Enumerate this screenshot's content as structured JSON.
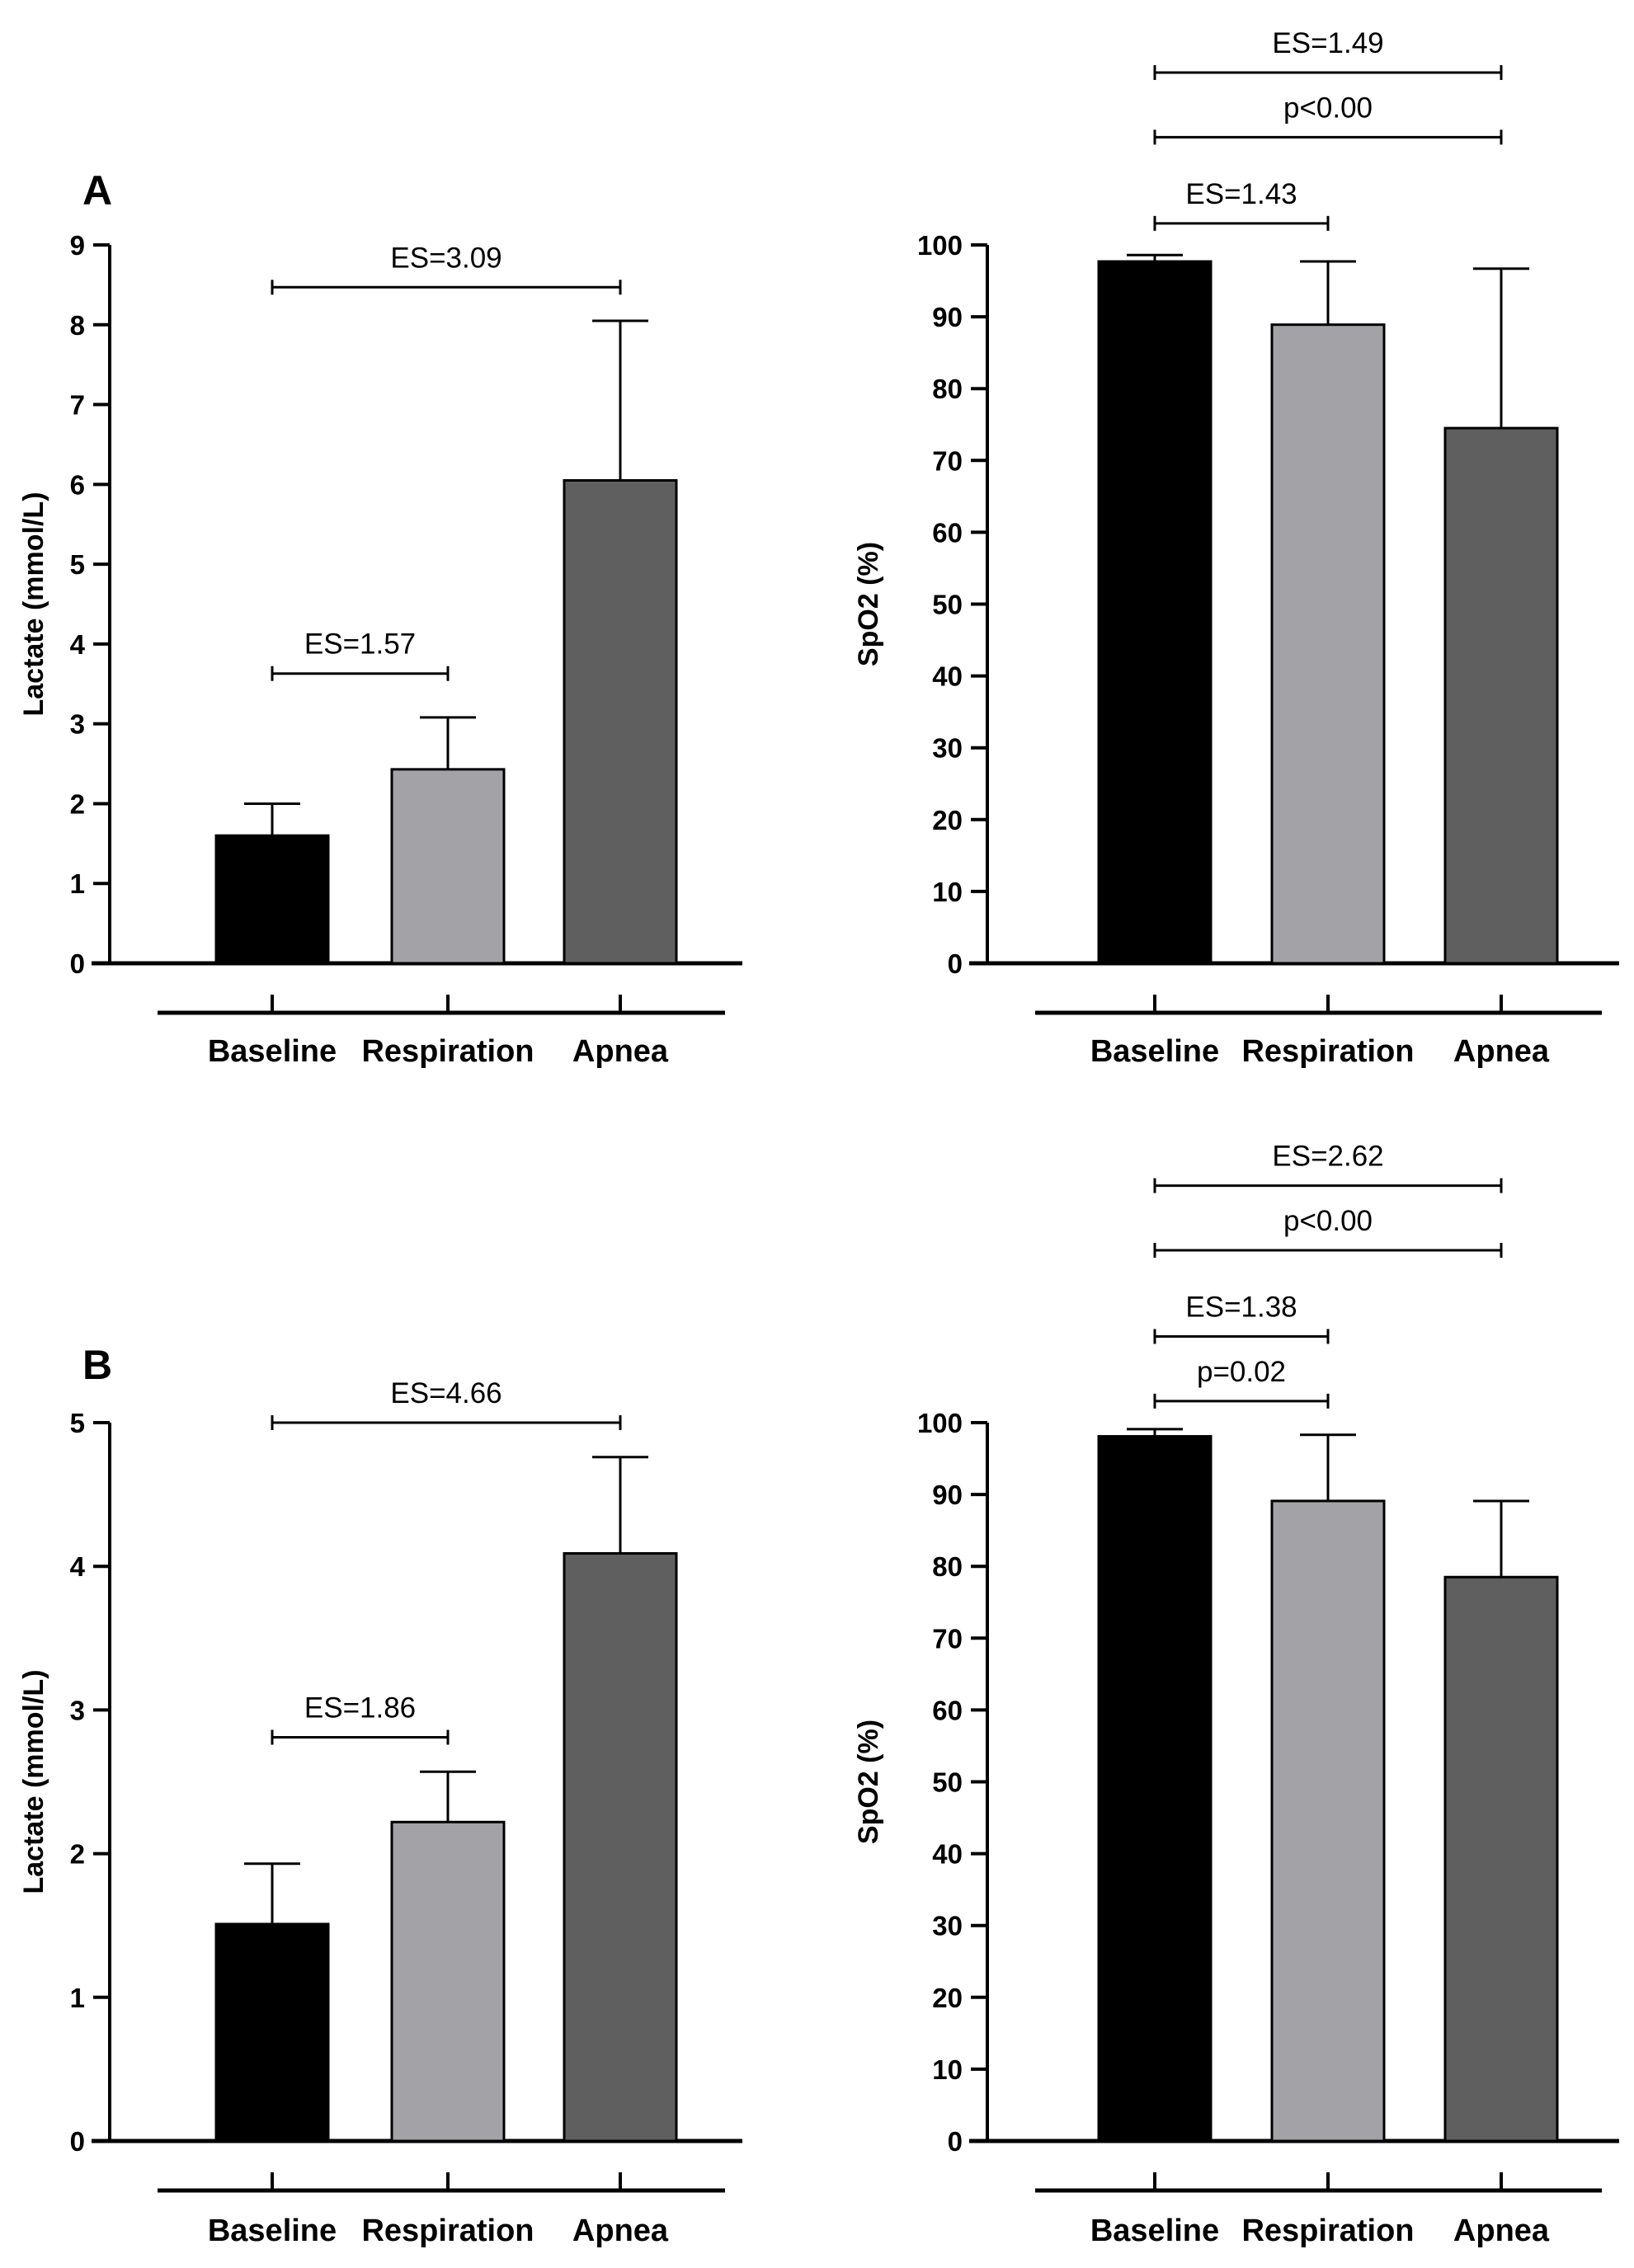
{
  "chart_data": [
    {
      "panel": "A",
      "type": "bar",
      "ylabel": "Lactate (mmol/L)",
      "categories": [
        "Baseline",
        "Respiration",
        "Apnea"
      ],
      "values": [
        1.6,
        2.43,
        6.05
      ],
      "errors": [
        0.4,
        0.65,
        2.0
      ],
      "ylim": [
        0,
        9
      ],
      "yticks": [
        "0",
        "1",
        "2",
        "3",
        "4",
        "5",
        "6",
        "7",
        "8",
        "9"
      ],
      "colors": [
        "#000000",
        "#a3a3a7",
        "#5f5f5f"
      ],
      "annotations": [
        {
          "label": "ES=1.57",
          "from": 0,
          "to": 1,
          "level": 3.63
        },
        {
          "label": "ES=3.09",
          "from": 0,
          "to": 2,
          "level": 8.47
        }
      ]
    },
    {
      "type": "bar",
      "ylabel": "SpO2 (%)",
      "categories": [
        "Baseline",
        "Respiration",
        "Apnea"
      ],
      "values": [
        97.7,
        88.9,
        74.5
      ],
      "errors": [
        0.9,
        8.8,
        22.2
      ],
      "ylim": [
        0,
        100
      ],
      "yticks": [
        "0",
        "10",
        "20",
        "30",
        "40",
        "50",
        "60",
        "70",
        "80",
        "90",
        "100"
      ],
      "colors": [
        "#000000",
        "#a3a3a7",
        "#5f5f5f"
      ],
      "annotations": [
        {
          "label": "ES=1.43",
          "from": 0,
          "to": 1,
          "level": 103
        },
        {
          "label": "p<0.00",
          "from": 0,
          "to": 2,
          "level": 115
        },
        {
          "label": "ES=1.49",
          "from": 0,
          "to": 2,
          "level": 124
        }
      ]
    },
    {
      "panel": "B",
      "type": "bar",
      "ylabel": "Lactate (mmol/L)",
      "categories": [
        "Baseline",
        "Respiration",
        "Apnea"
      ],
      "values": [
        1.51,
        2.22,
        4.09
      ],
      "errors": [
        0.42,
        0.35,
        0.67
      ],
      "ylim": [
        0,
        5
      ],
      "yticks": [
        "0",
        "1",
        "2",
        "3",
        "4",
        "5"
      ],
      "colors": [
        "#000000",
        "#a3a3a7",
        "#5f5f5f"
      ],
      "annotations": [
        {
          "label": "ES=1.86",
          "from": 0,
          "to": 1,
          "level": 2.81
        },
        {
          "label": "ES=4.66",
          "from": 0,
          "to": 2,
          "level": 5.0
        }
      ]
    },
    {
      "type": "bar",
      "ylabel": "SpO2 (%)",
      "categories": [
        "Baseline",
        "Respiration",
        "Apnea"
      ],
      "values": [
        98.1,
        89.1,
        78.5
      ],
      "errors": [
        1.0,
        9.2,
        10.6
      ],
      "ylim": [
        0,
        100
      ],
      "yticks": [
        "0",
        "10",
        "20",
        "30",
        "40",
        "50",
        "60",
        "70",
        "80",
        "90",
        "100"
      ],
      "colors": [
        "#000000",
        "#a3a3a7",
        "#5f5f5f"
      ],
      "annotations": [
        {
          "label": "p=0.02",
          "from": 0,
          "to": 1,
          "level": 103
        },
        {
          "label": "ES=1.38",
          "from": 0,
          "to": 1,
          "level": 112
        },
        {
          "label": "p<0.00",
          "from": 0,
          "to": 2,
          "level": 124
        },
        {
          "label": "ES=2.62",
          "from": 0,
          "to": 2,
          "level": 133
        }
      ]
    }
  ]
}
